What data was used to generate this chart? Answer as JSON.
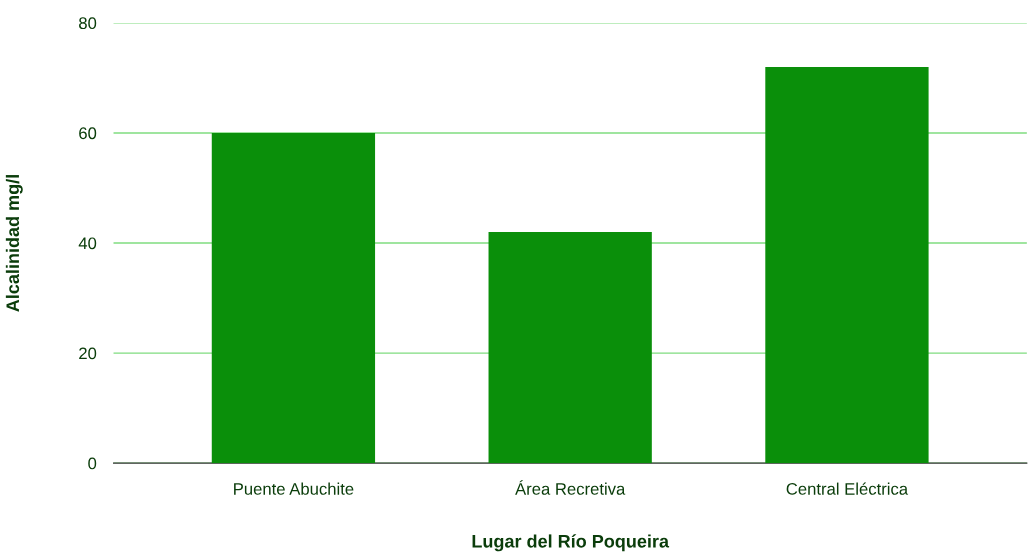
{
  "chart_data": {
    "type": "bar",
    "xlabel": "Lugar del Río Poqueira",
    "ylabel": "Alcalinidad mg/l",
    "categories": [
      "Puente Abuchite",
      "Área Recretiva",
      "Central Eléctrica"
    ],
    "values": [
      60,
      42,
      72
    ],
    "color": "#0a8f0a",
    "ylim": [
      0,
      80
    ],
    "yticks": [
      0,
      20,
      40,
      60,
      80
    ],
    "grid": "y"
  }
}
